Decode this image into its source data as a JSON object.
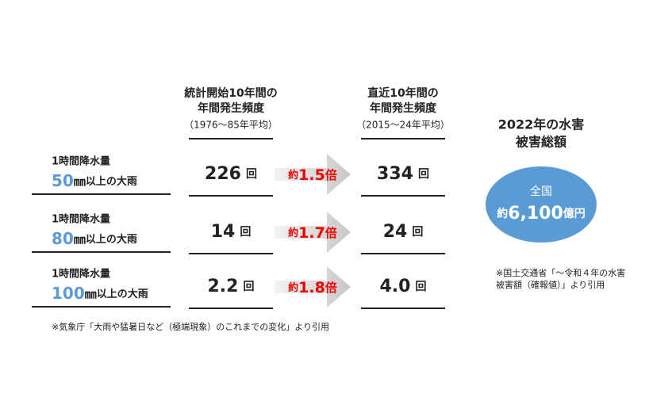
{
  "columns": [
    {
      "title_lines": [
        "統計開始10年間の",
        "年間発生頻度"
      ],
      "period": "（1976〜85年平均）"
    },
    {
      "title_lines": [
        "直近10年間の",
        "年間発生頻度"
      ],
      "period": "（2015〜24年平均）"
    }
  ],
  "rows": [
    {
      "label": "1時間降水量",
      "amount": "50",
      "unit": "㎜",
      "suffix": "以上の大雨",
      "past": "226",
      "recent": "334",
      "count_unit": "回",
      "ratio_prefix": "約",
      "ratio": "1.5",
      "ratio_suffix": "倍"
    },
    {
      "label": "1時間降水量",
      "amount": "80",
      "unit": "㎜",
      "suffix": "以上の大雨",
      "past": "14",
      "recent": "24",
      "count_unit": "回",
      "ratio_prefix": "約",
      "ratio": "1.7",
      "ratio_suffix": "倍"
    },
    {
      "label": "1時間降水量",
      "amount": "100",
      "unit": "㎜",
      "suffix": "以上の大雨",
      "past": "2.2",
      "recent": "4.0",
      "count_unit": "回",
      "ratio_prefix": "約",
      "ratio": "1.8",
      "ratio_suffix": "倍"
    }
  ],
  "source_note": "※気象庁「大雨や猛暑日など（極端現象）のこれまでの変化」より引用",
  "damage": {
    "title_lines": [
      "2022年の水害",
      "被害総額"
    ],
    "region": "全国",
    "amount_prefix": "約",
    "amount": "6,100",
    "amount_unit": "億円",
    "note_lines": [
      "※国土交通省「〜令和４年の水害",
      "被害額（確報値）」より引用"
    ]
  }
}
